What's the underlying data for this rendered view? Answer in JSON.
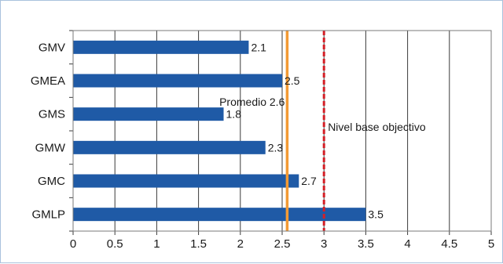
{
  "chart_data": {
    "type": "bar",
    "orientation": "horizontal",
    "categories": [
      "GMV",
      "GMEA",
      "GMS",
      "GMW",
      "GMC",
      "GMLP"
    ],
    "values": [
      2.1,
      2.5,
      1.8,
      2.3,
      2.7,
      3.5
    ],
    "data_labels": [
      "2.1",
      "2.5",
      "1.8",
      "2.3",
      "2.7",
      "3.5"
    ],
    "xlim": [
      0,
      5
    ],
    "x_ticks": [
      0,
      0.5,
      1,
      1.5,
      2,
      2.5,
      3,
      3.5,
      4,
      4.5,
      5
    ],
    "x_tick_labels": [
      "0",
      "0.5",
      "1",
      "1.5",
      "2",
      "2.5",
      "3",
      "3.5",
      "4",
      "4.5",
      "5"
    ],
    "grid": "vertical",
    "bar_color": "#1f5aa6",
    "reference_lines": [
      {
        "value": 2.56,
        "label": "Promedio 2.6",
        "color": "#f39a34",
        "style": "solid"
      },
      {
        "value": 3.0,
        "label": "Nivel base objectivo",
        "color": "#d42027",
        "style": "dashed"
      }
    ],
    "title": "",
    "xlabel": "",
    "ylabel": ""
  }
}
